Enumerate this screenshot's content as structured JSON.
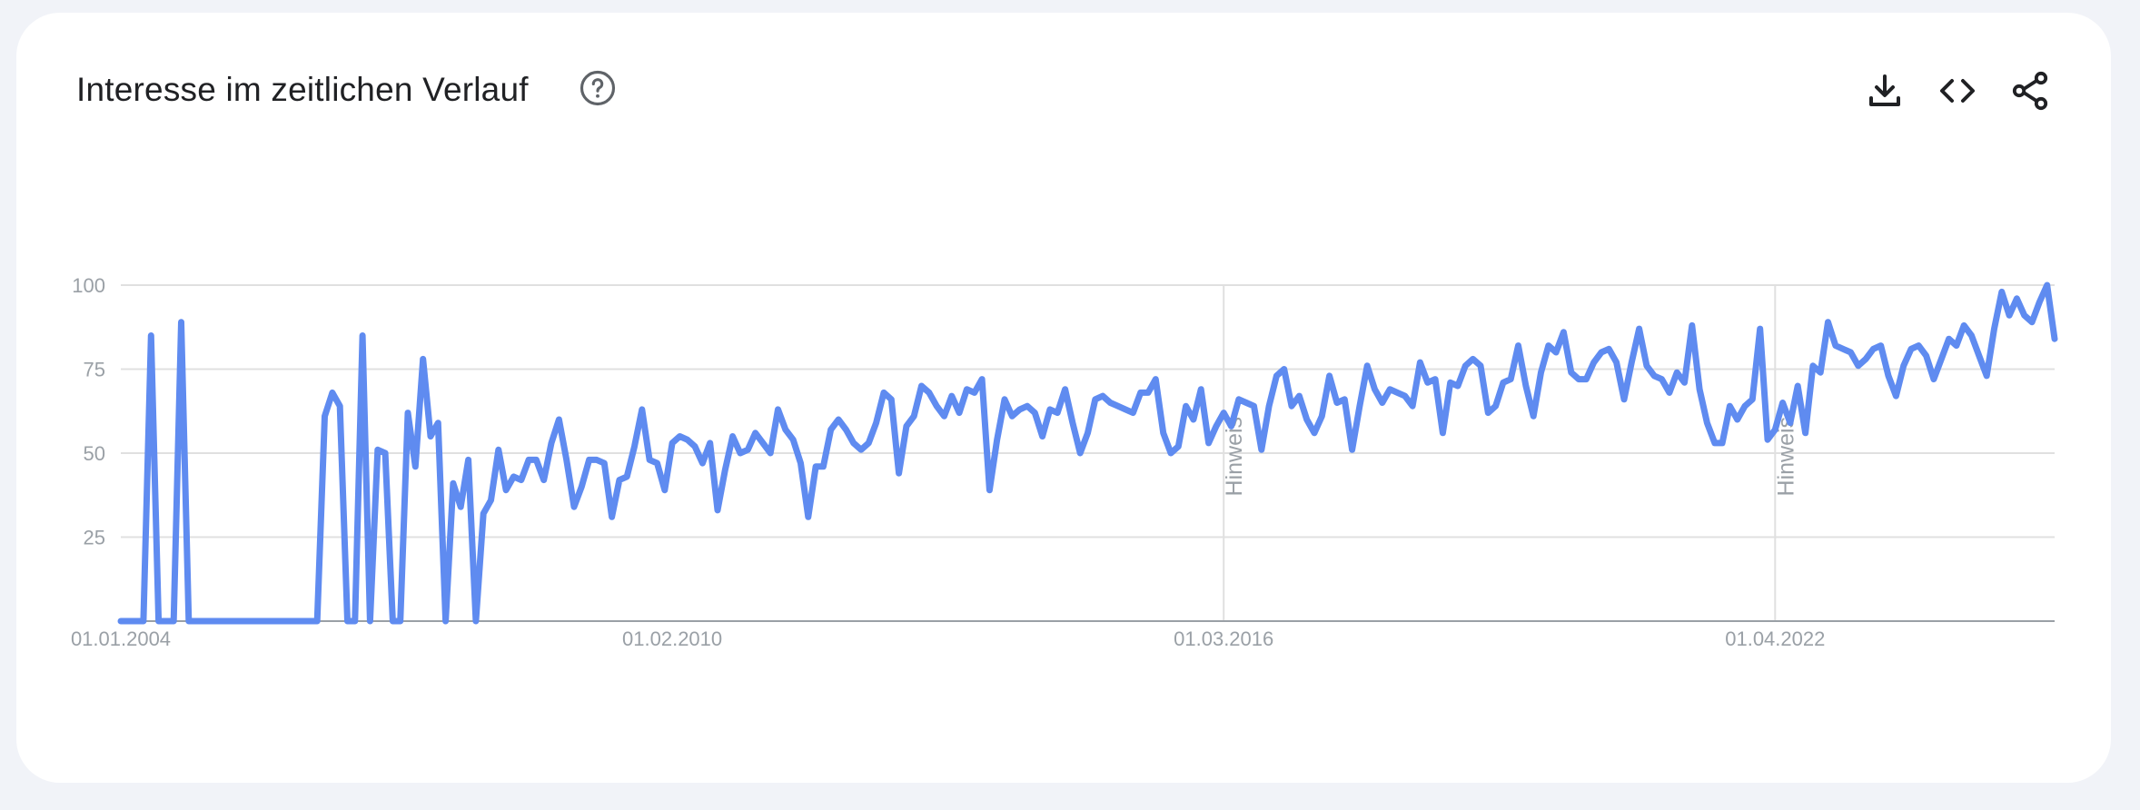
{
  "header": {
    "title": "Interesse im zeitlichen Verlauf",
    "help_icon": "help-circle-icon",
    "actions": [
      {
        "name": "download-button",
        "icon": "download-icon"
      },
      {
        "name": "embed-button",
        "icon": "code-icon"
      },
      {
        "name": "share-button",
        "icon": "share-icon"
      }
    ]
  },
  "colors": {
    "series": "#5f8bf0",
    "grid": "#e0e0e0",
    "axis": "#9aa0a6",
    "text": "#202124",
    "card": "#ffffff",
    "background": "#f1f3f8"
  },
  "chart_data": {
    "type": "line",
    "title": "Interesse im zeitlichen Verlauf",
    "xlabel": "",
    "ylabel": "",
    "x_range": [
      "01.01.2004",
      "01.10.2024"
    ],
    "ylim": [
      0,
      100
    ],
    "yticks": [
      25,
      50,
      75,
      100
    ],
    "yticklabels": [
      "25",
      "50",
      "75",
      "100"
    ],
    "xticks": [
      "01.01.2004",
      "01.02.2010",
      "01.03.2016",
      "01.04.2022"
    ],
    "grid": true,
    "annotations": [
      {
        "x": "01.03.2016",
        "text": "Hinweis"
      },
      {
        "x": "01.04.2022",
        "text": "Hinweis"
      }
    ],
    "series": [
      {
        "x_start": "2004-01",
        "frequency": "monthly",
        "values": [
          0,
          0,
          0,
          0,
          85,
          0,
          0,
          0,
          89,
          0,
          0,
          0,
          0,
          0,
          0,
          0,
          0,
          0,
          0,
          0,
          0,
          0,
          0,
          0,
          0,
          0,
          0,
          61,
          68,
          64,
          0,
          0,
          85,
          0,
          51,
          50,
          0,
          0,
          62,
          46,
          78,
          55,
          59,
          0,
          41,
          34,
          48,
          0,
          32,
          36,
          51,
          39,
          43,
          42,
          48,
          48,
          42,
          53,
          60,
          48,
          34,
          40,
          48,
          48,
          47,
          31,
          42,
          43,
          52,
          63,
          48,
          47,
          39,
          53,
          55,
          54,
          52,
          47,
          53,
          33,
          45,
          55,
          50,
          51,
          56,
          53,
          50,
          63,
          57,
          54,
          47,
          31,
          46,
          46,
          57,
          60,
          57,
          53,
          51,
          53,
          59,
          68,
          66,
          44,
          58,
          61,
          70,
          68,
          64,
          61,
          67,
          62,
          69,
          68,
          72,
          39,
          54,
          66,
          61,
          63,
          64,
          62,
          55,
          63,
          62,
          69,
          59,
          50,
          56,
          66,
          67,
          65,
          64,
          63,
          62,
          68,
          68,
          72,
          56,
          50,
          52,
          64,
          60,
          69,
          53,
          58,
          62,
          58,
          66,
          65,
          64,
          51,
          64,
          73,
          75,
          64,
          67,
          60,
          56,
          61,
          73,
          65,
          66,
          51,
          64,
          76,
          69,
          65,
          69,
          68,
          67,
          64,
          77,
          71,
          72,
          56,
          71,
          70,
          76,
          78,
          76,
          62,
          64,
          71,
          72,
          82,
          70,
          61,
          74,
          82,
          80,
          86,
          74,
          72,
          72,
          77,
          80,
          81,
          77,
          66,
          77,
          87,
          76,
          73,
          72,
          68,
          74,
          71,
          88,
          69,
          59,
          53,
          53,
          64,
          60,
          64,
          66,
          87,
          54,
          57,
          65,
          59,
          70,
          56,
          76,
          74,
          89,
          82,
          81,
          80,
          76,
          78,
          81,
          82,
          73,
          67,
          76,
          81,
          82,
          79,
          72,
          78,
          84,
          82,
          88,
          85,
          79,
          73,
          87,
          98,
          91,
          96,
          91,
          89,
          95,
          100,
          84
        ]
      }
    ]
  }
}
